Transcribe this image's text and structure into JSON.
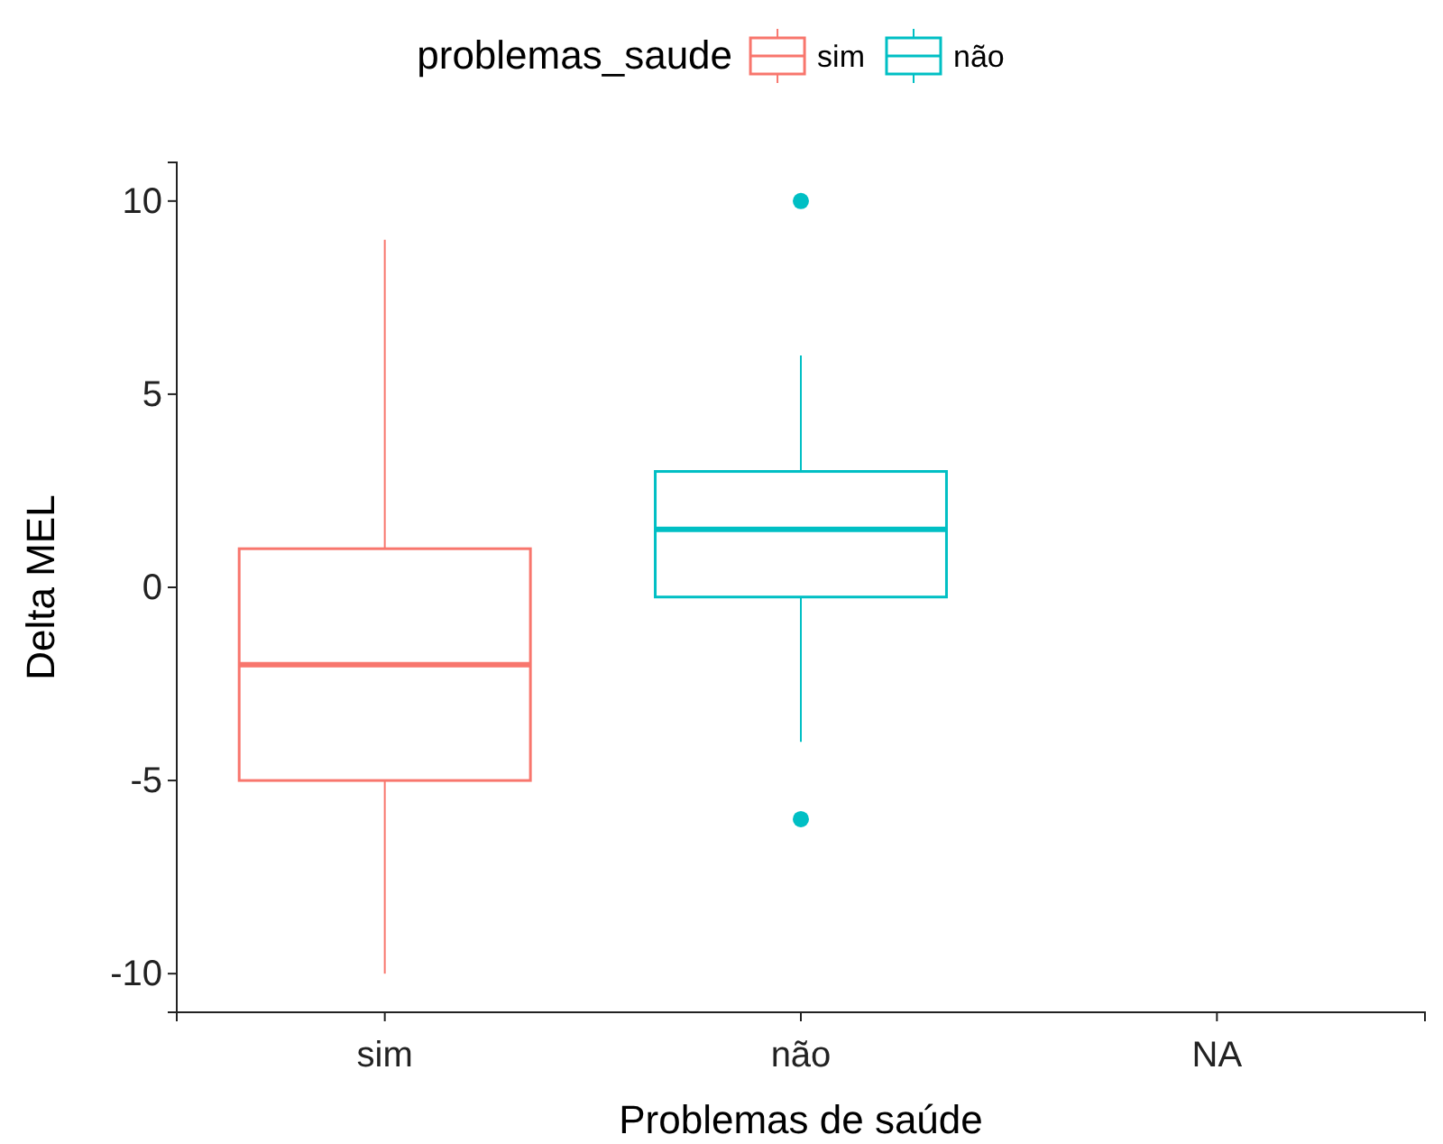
{
  "chart_data": {
    "type": "box",
    "xlabel": "Problemas de saúde",
    "ylabel": "Delta MEL",
    "legend_title": "problemas_saude",
    "legend": "top",
    "categories": [
      "sim",
      "não",
      "NA"
    ],
    "ylim": [
      -11,
      11
    ],
    "yticks": [
      -10,
      -5,
      0,
      5,
      10
    ],
    "series": [
      {
        "name": "sim",
        "color": "#f8766d",
        "boxes": [
          {
            "low": -10,
            "q1": -5,
            "median": -2,
            "q3": 1,
            "high": 9
          },
          null,
          null
        ]
      },
      {
        "name": "não",
        "color": "#00bfc4",
        "boxes": [
          null,
          {
            "low": -4,
            "q1": -0.25,
            "median": 1.5,
            "q3": 3,
            "high": 6,
            "outliers": [
              10,
              -6
            ]
          },
          null
        ]
      }
    ]
  }
}
